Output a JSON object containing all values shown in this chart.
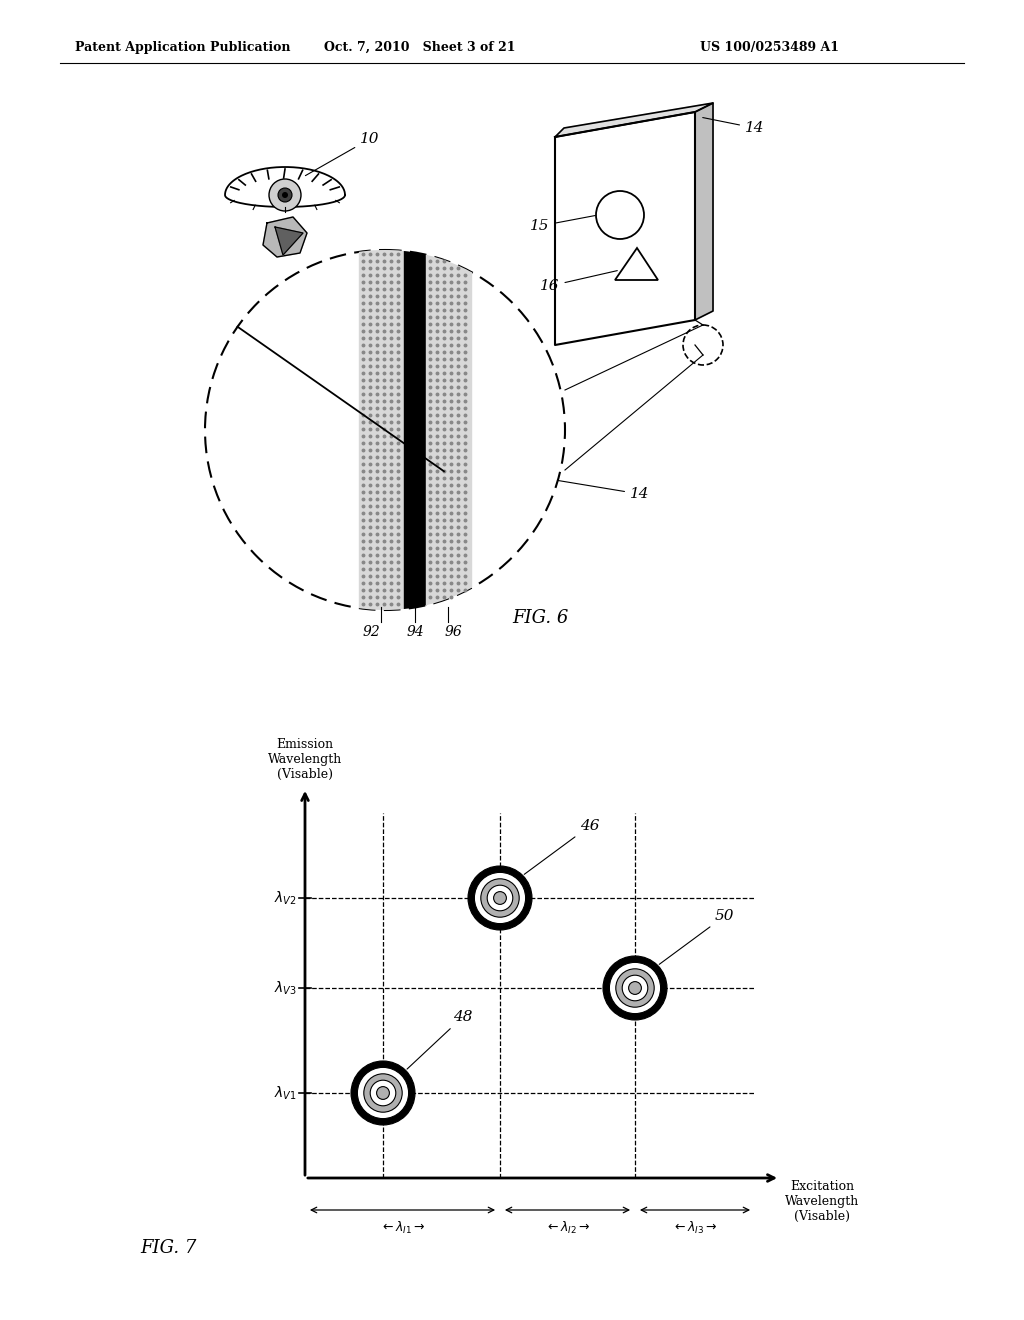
{
  "header_left": "Patent Application Publication",
  "header_mid": "Oct. 7, 2010   Sheet 3 of 21",
  "header_right": "US 100/0253489 A1",
  "fig6_label": "FIG. 6",
  "fig7_label": "FIG. 7",
  "bg_color": "#ffffff",
  "text_color": "#000000",
  "label_10": "10",
  "label_14a": "14",
  "label_14b": "14",
  "label_15": "15",
  "label_16": "16",
  "label_92": "92",
  "label_94": "94",
  "label_96": "96",
  "label_46": "46",
  "label_48": "48",
  "label_50": "50"
}
